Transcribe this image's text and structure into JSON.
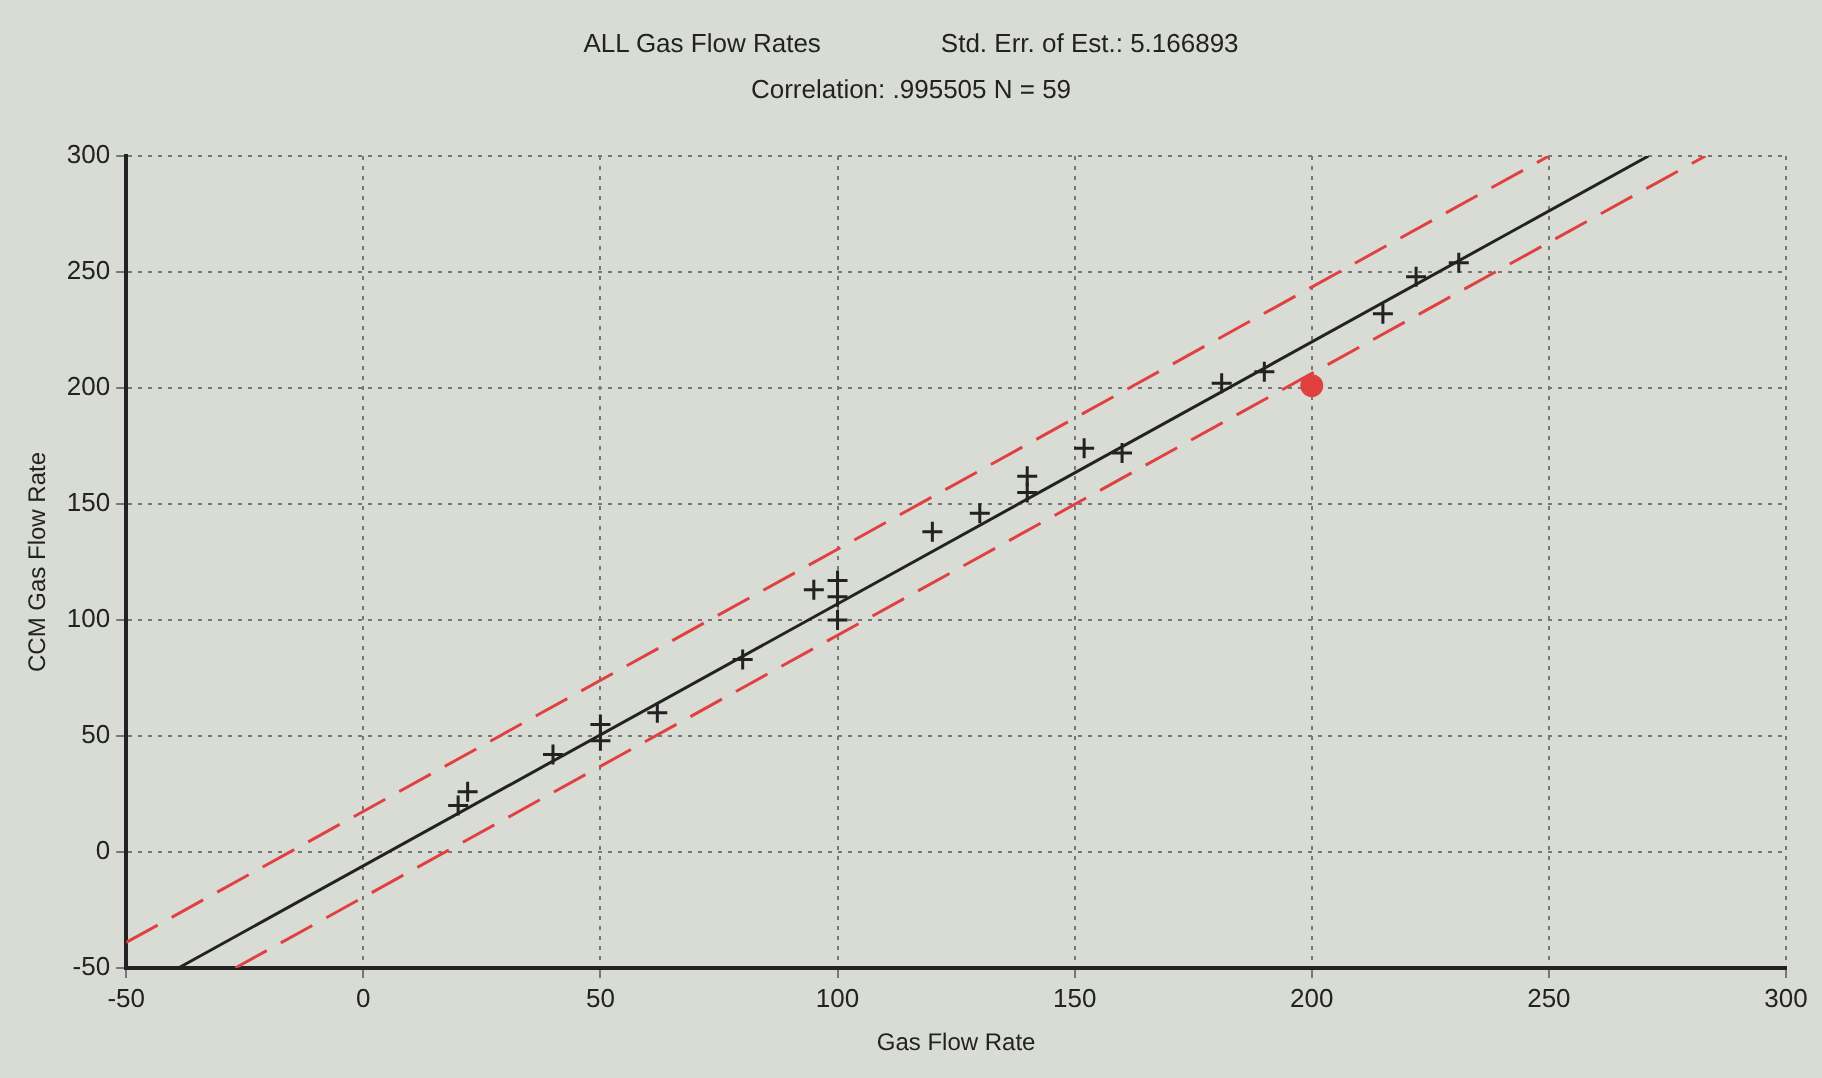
{
  "chart_data": {
    "type": "scatter",
    "title": "ALL Gas Flow Rates",
    "subtitle": "Correlation: .995505 N = 59",
    "annotations": [
      "Std. Err. of Est.: 5.166893"
    ],
    "xlabel": "Gas Flow Rate",
    "ylabel": "CCM Gas Flow Rate",
    "xlim": [
      -50,
      300
    ],
    "ylim": [
      -50,
      300
    ],
    "xticks": [
      -50,
      0,
      50,
      100,
      150,
      200,
      250,
      300
    ],
    "yticks": [
      -50,
      0,
      50,
      100,
      150,
      200,
      250,
      300
    ],
    "grid": true,
    "legend": false,
    "series": [
      {
        "marker": "cross",
        "color": "#222222",
        "x": [
          20,
          22,
          40,
          50,
          50,
          62,
          80,
          95,
          100,
          100,
          100,
          120,
          130,
          140,
          140,
          152,
          160,
          181,
          190,
          215,
          222,
          231
        ],
        "values": [
          20,
          26,
          42,
          48,
          55,
          60,
          83,
          113,
          100,
          110,
          117,
          138,
          146,
          155,
          162,
          174,
          172,
          202,
          207,
          232,
          248,
          254
        ]
      },
      {
        "type": "scatter",
        "marker": "circle",
        "color": "#e04040",
        "x": [
          200
        ],
        "values": [
          201
        ]
      },
      {
        "type": "line",
        "color": "#222222",
        "line_style": "solid",
        "x": [
          -39,
          271
        ],
        "values": [
          -50,
          300
        ]
      },
      {
        "type": "line",
        "color": "#e04040",
        "line_style": "dashed",
        "x": [
          -50,
          250
        ],
        "values": [
          -39,
          300
        ]
      },
      {
        "type": "line",
        "color": "#e04040",
        "line_style": "dashed",
        "x": [
          -27,
          283
        ],
        "values": [
          -50,
          300
        ]
      }
    ]
  }
}
